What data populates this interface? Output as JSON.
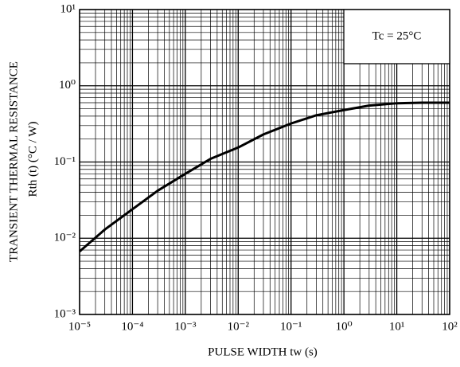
{
  "chart_data": {
    "type": "line",
    "x_label": "PULSE WIDTH   tw   (s)",
    "y_label": "TRANSIENT THERMAL RESISTANCE",
    "y_label_2": "Rth (t)   (°C / W)",
    "annotation": "Tc = 25°C",
    "x": [
      1e-05,
      3e-05,
      0.0001,
      0.0003,
      0.001,
      0.003,
      0.01,
      0.03,
      0.1,
      0.3,
      1,
      3,
      10,
      30,
      100
    ],
    "series": [
      {
        "name": "Rth",
        "color": "#000000",
        "values": [
          0.0067,
          0.013,
          0.024,
          0.042,
          0.07,
          0.11,
          0.155,
          0.23,
          0.32,
          0.41,
          0.48,
          0.55,
          0.59,
          0.6,
          0.6
        ]
      }
    ],
    "xscale": "log",
    "yscale": "log",
    "grid": true,
    "minor_grid": true,
    "xlim": [
      1e-05,
      100
    ],
    "ylim": [
      0.001,
      10
    ],
    "xticks": [
      {
        "value": 1e-05,
        "label": "10⁻⁵"
      },
      {
        "value": 0.0001,
        "label": "10⁻⁴"
      },
      {
        "value": 0.001,
        "label": "10⁻³"
      },
      {
        "value": 0.01,
        "label": "10⁻²"
      },
      {
        "value": 0.1,
        "label": "10⁻¹"
      },
      {
        "value": 1,
        "label": "10⁰"
      },
      {
        "value": 10,
        "label": "10¹"
      },
      {
        "value": 100,
        "label": "10²"
      }
    ],
    "yticks": [
      {
        "value": 0.001,
        "label": "10⁻³"
      },
      {
        "value": 0.01,
        "label": "10⁻²"
      },
      {
        "value": 0.1,
        "label": "10⁻¹"
      },
      {
        "value": 1,
        "label": "10⁰"
      },
      {
        "value": 10,
        "label": "10¹"
      }
    ]
  }
}
